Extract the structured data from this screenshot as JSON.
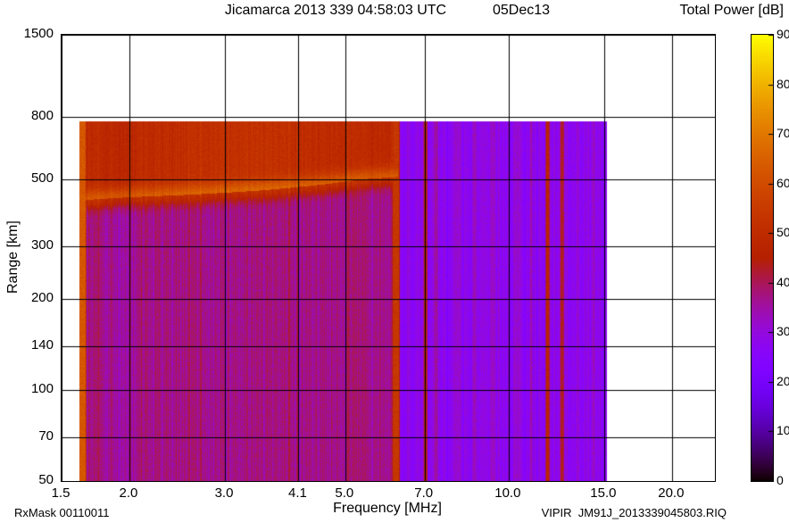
{
  "header": {
    "title_main": "Jicamarca 2013 339 04:58:03 UTC",
    "title_date": "05Dec13",
    "colorbar_title": "Total Power [dB]"
  },
  "footer": {
    "rxmask": "RxMask 00110011",
    "file_label": "VIPIR  JM91J_2013339045803.RIQ"
  },
  "chart_data": {
    "type": "heatmap",
    "title": "Jicamarca 2013 339 04:58:03 UTC  05Dec13",
    "xlabel": "Frequency [MHz]",
    "ylabel": "Range [km]",
    "x_scale": "log",
    "y_scale": "log",
    "x_range": [
      1.5,
      24.0
    ],
    "y_range": [
      50,
      1500
    ],
    "x_ticks": [
      1.5,
      2.0,
      3.0,
      4.1,
      5.0,
      7.0,
      10.0,
      15.0,
      20.0
    ],
    "x_tick_labels": [
      "1.5",
      "2.0",
      "3.0",
      "4.1",
      "5.0",
      "7.0",
      "10.0",
      "15.0",
      "20.0"
    ],
    "y_ticks": [
      50,
      70,
      100,
      140,
      200,
      300,
      500,
      800,
      1500
    ],
    "y_tick_labels": [
      "50",
      "70",
      "100",
      "140",
      "200",
      "300",
      "500",
      "800",
      "1500"
    ],
    "grid": true,
    "colorbar": {
      "label": "Total Power [dB]",
      "min": 0,
      "max": 90,
      "ticks": [
        0,
        10,
        20,
        30,
        40,
        50,
        60,
        70,
        80,
        90
      ],
      "palette": "gnuplot-pm3d black-purple-magenta-red-orange-yellow"
    },
    "data_extent": {
      "f_min": 1.62,
      "f_max": 15.2,
      "range_min": 50,
      "range_max": 775
    },
    "background_regions": [
      {
        "f_min": 1.62,
        "f_max": 6.3,
        "power_db": 37
      },
      {
        "f_min": 6.3,
        "f_max": 15.2,
        "power_db": 27
      }
    ],
    "echo_layer": {
      "f_min": 1.62,
      "f_max": 6.25,
      "range_max": 775,
      "power_db": 49,
      "enhancement": {
        "f_center": 3.2,
        "log_f_sigma": 0.14,
        "power_boost": 3
      }
    },
    "f_trace": {
      "power_db": 63,
      "points": [
        [
          1.62,
          425
        ],
        [
          2.0,
          435
        ],
        [
          2.5,
          442
        ],
        [
          3.0,
          450
        ],
        [
          3.5,
          458
        ],
        [
          4.0,
          468
        ],
        [
          4.5,
          478
        ],
        [
          5.0,
          490
        ],
        [
          5.5,
          500
        ],
        [
          6.2,
          507
        ]
      ]
    },
    "rfi_lines": [
      {
        "f": 1.64,
        "width_mhz": 0.035,
        "power_db": 63
      },
      {
        "f": 6.2,
        "width_mhz": 0.14,
        "power_db": 54
      },
      {
        "f": 7.03,
        "width_mhz": 0.07,
        "power_db": 46
      },
      {
        "f": 7.35,
        "width_mhz": 0.1,
        "power_db": 35
      },
      {
        "f": 8.05,
        "width_mhz": 0.25,
        "power_db": 31
      },
      {
        "f": 8.65,
        "width_mhz": 0.12,
        "power_db": 33
      },
      {
        "f": 9.35,
        "width_mhz": 0.18,
        "power_db": 32
      },
      {
        "f": 10.35,
        "width_mhz": 0.3,
        "power_db": 31
      },
      {
        "f": 11.0,
        "width_mhz": 0.1,
        "power_db": 34
      },
      {
        "f": 11.8,
        "width_mhz": 0.12,
        "power_db": 47
      },
      {
        "f": 12.55,
        "width_mhz": 0.14,
        "power_db": 43
      },
      {
        "f": 13.4,
        "width_mhz": 0.12,
        "power_db": 31
      },
      {
        "f": 14.35,
        "width_mhz": 0.1,
        "power_db": 33
      }
    ],
    "noise": {
      "stripe_db": 5,
      "pixel_db": 2.5
    }
  }
}
